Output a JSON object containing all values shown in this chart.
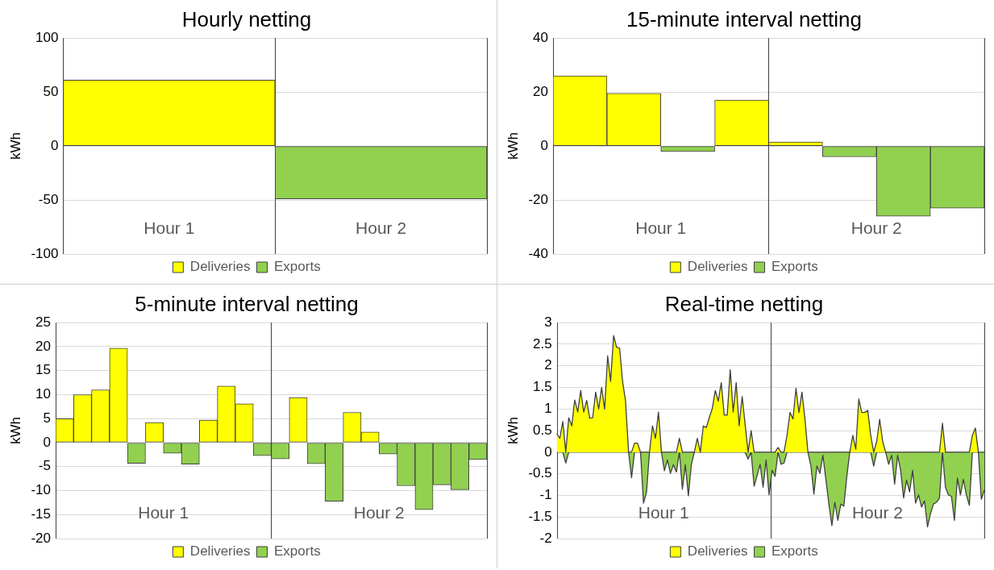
{
  "chart_data": [
    {
      "type": "bar",
      "title": "Hourly netting",
      "ylabel": "kWh",
      "categories": [
        null,
        null
      ],
      "stacked": true,
      "ylim": [
        -100,
        100
      ],
      "yticks": [
        -100,
        -50,
        0,
        50,
        100
      ],
      "grid": "y",
      "legend": "bottom",
      "annotations": [
        "Hour 1",
        "Hour 2"
      ],
      "series": [
        {
          "name": "Deliveries",
          "color": "#ffff00",
          "values": [
            61,
            0
          ]
        },
        {
          "name": "Exports",
          "color": "#92d050",
          "values": [
            0,
            -49
          ]
        }
      ]
    },
    {
      "type": "bar",
      "title": "15-minute interval netting",
      "ylabel": "kWh",
      "categories": [
        null,
        null,
        null,
        null,
        null,
        null,
        null,
        null
      ],
      "stacked": true,
      "ylim": [
        -40,
        40
      ],
      "yticks": [
        -40,
        -20,
        0,
        20,
        40
      ],
      "grid": "y",
      "legend": "bottom",
      "annotations": [
        "Hour 1",
        "Hour 2"
      ],
      "series": [
        {
          "name": "Deliveries",
          "color": "#ffff00",
          "values": [
            26,
            19.5,
            0,
            17,
            1.5,
            0,
            0,
            0
          ]
        },
        {
          "name": "Exports",
          "color": "#92d050",
          "values": [
            0,
            0,
            -2,
            0,
            0,
            -4,
            -26,
            -23
          ]
        }
      ]
    },
    {
      "type": "bar",
      "title": "5-minute interval netting",
      "ylabel": "kWh",
      "categories": [
        null,
        null,
        null,
        null,
        null,
        null,
        null,
        null,
        null,
        null,
        null,
        null,
        null,
        null,
        null,
        null,
        null,
        null,
        null,
        null,
        null,
        null,
        null,
        null
      ],
      "stacked": true,
      "ylim": [
        -20,
        25
      ],
      "yticks": [
        -20,
        -15,
        -10,
        -5,
        0,
        5,
        10,
        15,
        20,
        25
      ],
      "grid": "y",
      "legend": "bottom",
      "annotations": [
        "Hour 1",
        "Hour 2"
      ],
      "series": [
        {
          "name": "Deliveries",
          "color": "#ffff00",
          "values": [
            5,
            10,
            11,
            19.7,
            0,
            4.2,
            0,
            0,
            4.7,
            11.8,
            8.1,
            0,
            0,
            9.4,
            0,
            0,
            6.3,
            2.2,
            0,
            0,
            0,
            0,
            0,
            0
          ]
        },
        {
          "name": "Exports",
          "color": "#92d050",
          "values": [
            0,
            0,
            0,
            0,
            -4.3,
            0,
            -2.2,
            -4.5,
            0,
            0,
            0,
            -2.7,
            -3.4,
            0,
            -4.4,
            -12.2,
            0,
            0,
            -2.4,
            -9,
            -14,
            -8.8,
            -9.8,
            -3.5
          ]
        }
      ]
    },
    {
      "type": "area",
      "title": "Real-time netting",
      "ylabel": "kWh",
      "categories": [
        null,
        null,
        null,
        null,
        null,
        null,
        null,
        null,
        null,
        null,
        null,
        null,
        null,
        null,
        null,
        null,
        null,
        null,
        null,
        null,
        null,
        null,
        null,
        null,
        null,
        null,
        null,
        null,
        null,
        null,
        null,
        null,
        null,
        null,
        null,
        null,
        null,
        null,
        null,
        null,
        null,
        null,
        null,
        null,
        null,
        null,
        null,
        null,
        null,
        null,
        null,
        null,
        null,
        null,
        null,
        null,
        null,
        null,
        null,
        null,
        null,
        null,
        null,
        null,
        null,
        null,
        null,
        null,
        null,
        null,
        null,
        null,
        null,
        null,
        null,
        null,
        null,
        null,
        null,
        null,
        null,
        null,
        null,
        null,
        null,
        null,
        null,
        null,
        null,
        null,
        null,
        null,
        null,
        null,
        null,
        null,
        null,
        null,
        null,
        null,
        null,
        null,
        null,
        null,
        null,
        null,
        null,
        null,
        null,
        null,
        null,
        null,
        null,
        null,
        null,
        null,
        null,
        null,
        null,
        null,
        null,
        null,
        null,
        null,
        null,
        null,
        null,
        null,
        null,
        null,
        null,
        null,
        null,
        null,
        null,
        null,
        null,
        null,
        null,
        null,
        null,
        null,
        null,
        null
      ],
      "ylim": [
        -2,
        3
      ],
      "yticks": [
        -2,
        -1.5,
        -1,
        -0.5,
        0,
        0.5,
        1,
        1.5,
        2,
        2.5,
        3
      ],
      "grid": "y",
      "legend": "bottom",
      "annotations": [
        "Hour 1",
        "Hour 2"
      ],
      "series": [
        {
          "name": "Deliveries",
          "color": "#ffff00",
          "values": [
            0.43,
            0.32,
            0.71,
            0,
            0.8,
            0.61,
            1.21,
            0.93,
            1.43,
            0.93,
            1.2,
            0.79,
            0.8,
            1.39,
            1,
            1.5,
            1,
            2.23,
            1.64,
            2.7,
            2.43,
            2.41,
            1.64,
            1.18,
            0,
            0,
            0.21,
            0.21,
            0,
            0,
            0,
            0,
            0.61,
            0.32,
            0.93,
            0,
            0,
            0,
            0,
            0,
            0,
            0.32,
            0,
            0,
            0,
            0,
            0,
            0.32,
            0,
            0.61,
            0.57,
            0.8,
            1.01,
            1.43,
            1.18,
            1.61,
            0.86,
            0.86,
            1.91,
            0.93,
            1.61,
            0.61,
            1.29,
            0.64,
            0,
            0.5,
            0,
            0,
            0,
            0,
            0,
            0,
            0,
            0,
            0.11,
            0,
            0,
            0.39,
            0.92,
            0.77,
            1.48,
            0.92,
            1.39,
            0.77,
            0,
            0,
            0,
            0,
            0,
            0,
            0,
            0,
            0,
            0,
            0,
            0,
            0,
            0,
            0,
            0.39,
            0.07,
            1.23,
            0.92,
            0.92,
            0.97,
            0.39,
            0,
            0.25,
            0.76,
            0.25,
            0,
            0,
            0,
            0,
            0,
            0,
            0,
            0,
            0,
            0,
            0,
            0,
            0,
            0,
            0,
            0,
            0,
            0,
            0,
            0.67,
            0,
            0,
            0,
            0,
            0,
            0,
            0,
            0,
            0,
            0.39,
            0.56,
            0,
            0,
            0
          ]
        },
        {
          "name": "Exports",
          "color": "#92d050",
          "values": [
            0,
            0,
            0,
            -0.25,
            0,
            0,
            0,
            0,
            0,
            0,
            0,
            0,
            0,
            0,
            0,
            0,
            0,
            0,
            0,
            0,
            0,
            0,
            0,
            0,
            0,
            -0.59,
            0,
            0,
            0,
            -1.18,
            -0.93,
            0,
            0,
            0,
            0,
            0,
            -0.43,
            -0.18,
            -0.49,
            -0.29,
            -0.46,
            0,
            -0.86,
            -0.29,
            -1.01,
            -0.29,
            0,
            0,
            0,
            0,
            0,
            0,
            0,
            0,
            0,
            0,
            0,
            0,
            0,
            0,
            0,
            0,
            0,
            0,
            -0.16,
            0,
            -0.79,
            -0.54,
            -0.28,
            -0.81,
            -0.18,
            -0.99,
            -0.42,
            -0.56,
            0,
            -0.28,
            -0.25,
            0,
            0,
            0,
            0,
            0,
            0,
            0,
            0,
            -0.32,
            -0.97,
            -0.32,
            -0.49,
            -0.07,
            -0.63,
            -1.2,
            -1.7,
            -1.16,
            -1.58,
            -1.2,
            -1.25,
            -0.56,
            0,
            0,
            0,
            0,
            0,
            0,
            0,
            0,
            -0.32,
            0,
            0,
            0,
            0,
            -0.28,
            -0.07,
            -0.74,
            -0.07,
            -0.42,
            -1.06,
            -0.65,
            -0.92,
            -0.42,
            -1.18,
            -0.99,
            -1.27,
            -1.13,
            -1.73,
            -1.42,
            -1.2,
            -1.16,
            -1.06,
            0,
            -0.81,
            -0.99,
            -1.02,
            -1.58,
            -0.6,
            -0.99,
            -0.63,
            -0.99,
            -1.23,
            0,
            0,
            0,
            -1.09,
            -0.88
          ]
        }
      ]
    }
  ]
}
